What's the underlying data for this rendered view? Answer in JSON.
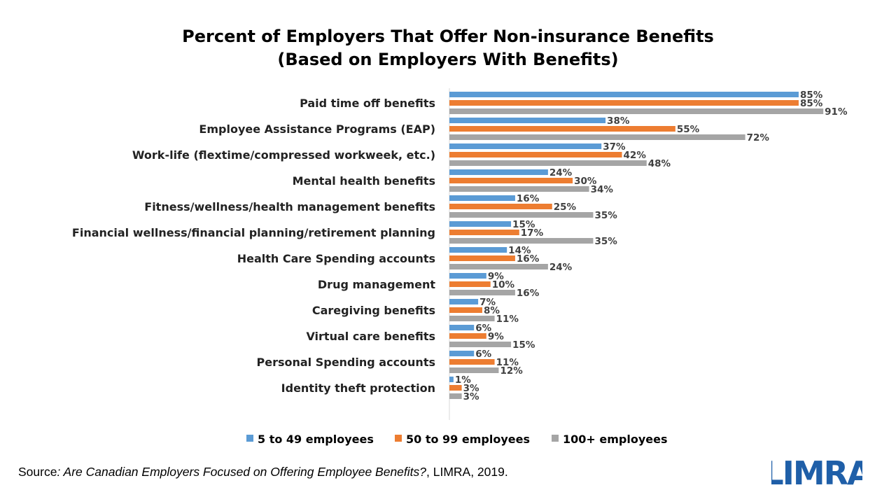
{
  "title": {
    "line1": "Percent of Employers That Offer Non-insurance Benefits",
    "line2": "(Based on Employers With Benefits)"
  },
  "chart_data": {
    "type": "bar",
    "orientation": "horizontal",
    "title": "Percent of Employers That Offer Non-insurance Benefits (Based on Employers With Benefits)",
    "categories": [
      "Paid time off benefits",
      "Employee Assistance Programs (EAP)",
      "Work-life (flextime/compressed workweek, etc.)",
      "Mental health benefits",
      "Fitness/wellness/health management benefits",
      "Financial wellness/financial planning/retirement planning",
      "Health Care Spending accounts",
      "Drug management",
      "Caregiving benefits",
      "Virtual care benefits",
      "Personal Spending accounts",
      "Identity theft protection"
    ],
    "series": [
      {
        "name": "5 to 49 employees",
        "color": "#5b9bd5",
        "values": [
          85,
          38,
          37,
          24,
          16,
          15,
          14,
          9,
          7,
          6,
          6,
          1
        ]
      },
      {
        "name": "50 to 99 employees",
        "color": "#ed7d31",
        "values": [
          85,
          55,
          42,
          30,
          25,
          17,
          16,
          10,
          8,
          9,
          11,
          3
        ]
      },
      {
        "name": "100+ employees",
        "color": "#a5a5a5",
        "values": [
          91,
          72,
          48,
          34,
          35,
          35,
          24,
          16,
          11,
          15,
          12,
          3
        ]
      }
    ],
    "value_suffix": "%",
    "xlim": [
      0,
      100
    ],
    "grid": false,
    "legend_position": "bottom"
  },
  "source": {
    "prefix": "Source",
    "italic": ": Are Canadian Employers Focused on Offering Employee Benefits?",
    "suffix": ", LIMRA, 2019."
  },
  "logo": {
    "text": "LIMRA",
    "color": "#1f5fa8"
  }
}
